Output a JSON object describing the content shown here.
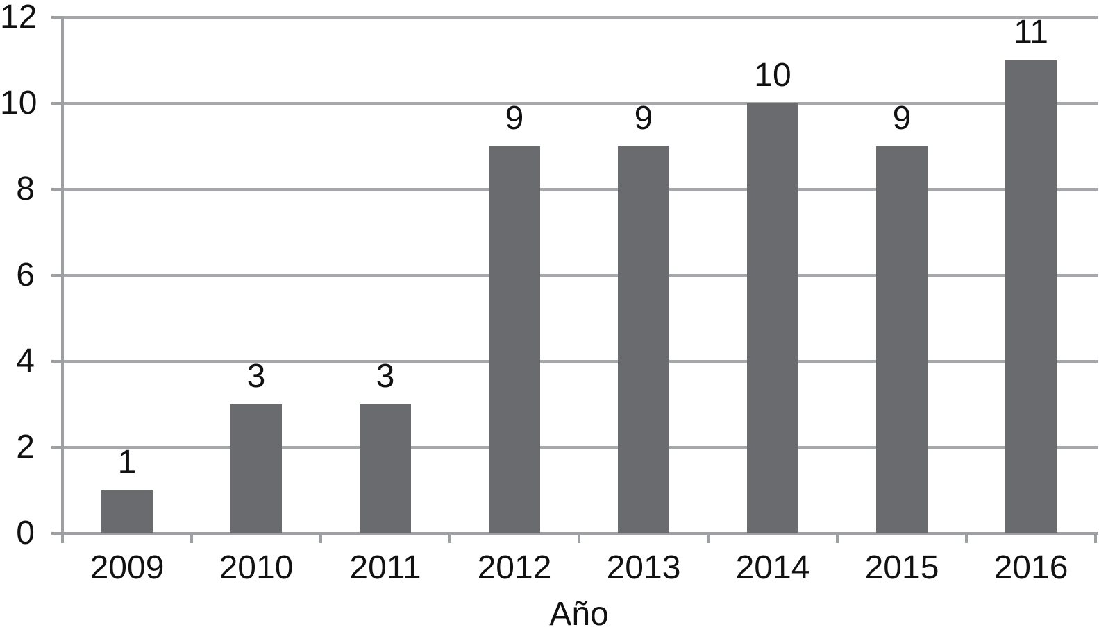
{
  "chart_data": {
    "type": "bar",
    "title": "",
    "xlabel": "Año",
    "ylabel": "",
    "categories": [
      "2009",
      "2010",
      "2011",
      "2012",
      "2013",
      "2014",
      "2015",
      "2016"
    ],
    "values": [
      1,
      3,
      3,
      9,
      9,
      10,
      9,
      11
    ],
    "data_labels": [
      "1",
      "3",
      "3",
      "9",
      "9",
      "10",
      "9",
      "11"
    ],
    "ylim": [
      0,
      12
    ],
    "yticks": [
      0,
      2,
      4,
      6,
      8,
      10,
      12
    ],
    "grid": "horizontal-only",
    "legend": "none",
    "series_count": 1,
    "colors": {
      "bar": "#6a6b6e",
      "axis": "#9d9fa2",
      "gridline": "#a5a7aa",
      "text": "#111111",
      "background": "#ffffff"
    }
  }
}
